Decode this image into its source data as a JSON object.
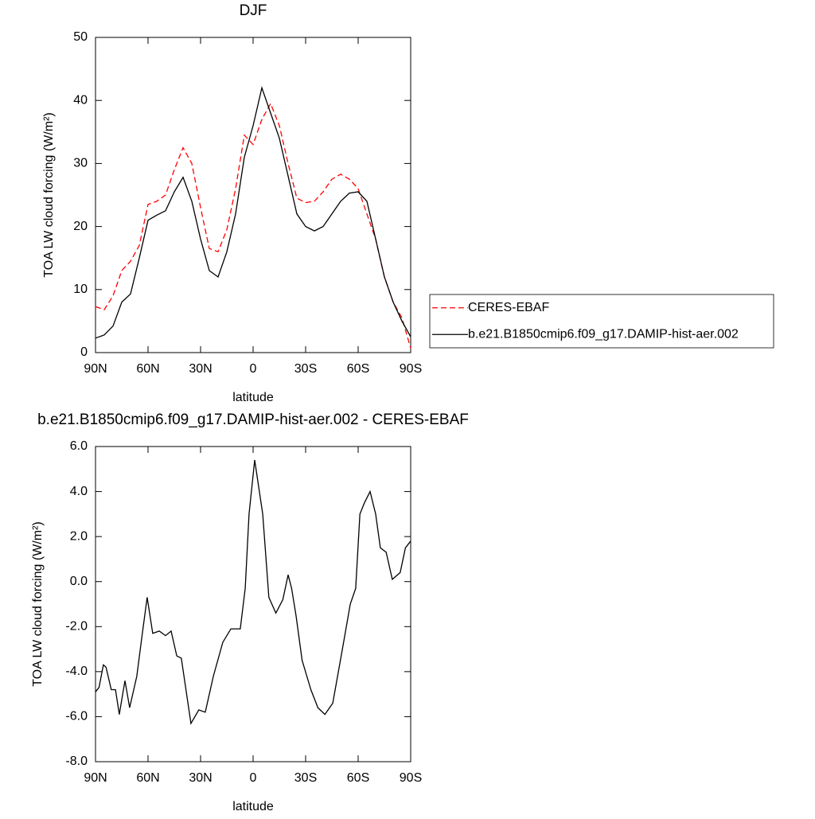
{
  "chart_data": [
    {
      "type": "line",
      "title": "DJF",
      "xlabel": "latitude",
      "ylabel": "TOA LW cloud forcing (W/m²)",
      "x": [
        90,
        85,
        80,
        75,
        70,
        65,
        60,
        55,
        50,
        45,
        40,
        35,
        30,
        25,
        20,
        15,
        10,
        5,
        0,
        -5,
        -10,
        -15,
        -20,
        -25,
        -30,
        -35,
        -40,
        -45,
        -50,
        -55,
        -60,
        -65,
        -70,
        -75,
        -80,
        -85,
        -90
      ],
      "xlim": [
        90,
        -90
      ],
      "xticks": [
        {
          "value": 90,
          "label": "90N"
        },
        {
          "value": 60,
          "label": "60N"
        },
        {
          "value": 30,
          "label": "30N"
        },
        0,
        {
          "value": -30,
          "label": "30S"
        },
        {
          "value": -60,
          "label": "60S"
        },
        {
          "value": -90,
          "label": "90S"
        }
      ],
      "ylim": [
        0,
        50
      ],
      "yticks": [
        0,
        10,
        20,
        30,
        40,
        50
      ],
      "legend": "right",
      "series": [
        {
          "name": "CERES-EBAF",
          "color": "#ff0000",
          "dashed": true,
          "values": [
            7.3,
            6.8,
            9,
            13,
            14.5,
            17,
            23.5,
            24,
            25,
            29,
            32.5,
            30,
            23,
            16.5,
            16,
            19.5,
            26,
            34.5,
            33,
            37,
            39.5,
            36,
            30,
            24.5,
            23.8,
            24,
            25.5,
            27.5,
            28.3,
            27.5,
            26,
            22,
            18,
            12,
            8,
            5.5,
            0.7
          ]
        },
        {
          "name": "b.e21.B1850cmip6.f09_g17.DAMIP-hist-aer.002",
          "color": "#000000",
          "dashed": false,
          "values": [
            2.3,
            2.8,
            4.2,
            8,
            9.3,
            15,
            21,
            21.8,
            22.5,
            25.5,
            27.8,
            24,
            18,
            13,
            12,
            16,
            22,
            31,
            36,
            42,
            38,
            34,
            28,
            22,
            20,
            19.3,
            20,
            22,
            24,
            25.3,
            25.5,
            24,
            18,
            12,
            8,
            5,
            2.5
          ]
        }
      ]
    },
    {
      "type": "line",
      "title": "b.e21.B1850cmip6.f09_g17.DAMIP-hist-aer.002 - CERES-EBAF",
      "xlabel": "latitude",
      "ylabel": "TOA LW cloud forcing (W/m²)",
      "x": [
        90,
        88,
        85.5,
        84,
        81,
        78.6,
        76.4,
        73.2,
        70.5,
        66.4,
        63.6,
        60.5,
        57.3,
        53.6,
        50,
        46.8,
        43.6,
        41,
        35.5,
        31,
        27.3,
        22.7,
        17.3,
        12.7,
        7.3,
        4.5,
        2.3,
        -0.9,
        -5.5,
        -9,
        -13,
        -17,
        -20,
        -22,
        -24.5,
        -28,
        -33,
        -37,
        -41,
        -45.5,
        -51,
        -55.5,
        -58.6,
        -61,
        -63.6,
        -66.8,
        -70,
        -72.7,
        -76,
        -79.5,
        -84,
        -87,
        -90
      ],
      "xlim": [
        90,
        -90
      ],
      "xticks": [
        {
          "value": 90,
          "label": "90N"
        },
        {
          "value": 60,
          "label": "60N"
        },
        {
          "value": 30,
          "label": "30N"
        },
        0,
        {
          "value": -30,
          "label": "30S"
        },
        {
          "value": -60,
          "label": "60S"
        },
        {
          "value": -90,
          "label": "90S"
        }
      ],
      "ylim": [
        -8,
        6
      ],
      "yticks": [
        {
          "value": -8,
          "label": "-8.0"
        },
        {
          "value": -6,
          "label": "-6.0"
        },
        {
          "value": -4,
          "label": "-4.0"
        },
        {
          "value": -2,
          "label": "-2.0"
        },
        {
          "value": 0,
          "label": "0.0"
        },
        {
          "value": 2,
          "label": "2.0"
        },
        {
          "value": 4,
          "label": "4.0"
        },
        {
          "value": 6,
          "label": "6.0"
        }
      ],
      "series": [
        {
          "color": "#000000",
          "dashed": false,
          "values": [
            -4.9,
            -4.7,
            -3.7,
            -3.8,
            -4.8,
            -4.8,
            -5.9,
            -4.4,
            -5.6,
            -4.2,
            -2.5,
            -0.7,
            -2.3,
            -2.2,
            -2.4,
            -2.2,
            -3.3,
            -3.4,
            -6.3,
            -5.7,
            -5.8,
            -4.2,
            -2.7,
            -2.1,
            -2.1,
            -0.3,
            3,
            5.4,
            3,
            -0.7,
            -1.4,
            -0.8,
            0.3,
            -0.3,
            -1.5,
            -3.5,
            -4.8,
            -5.6,
            -5.9,
            -5.4,
            -3,
            -1,
            -0.3,
            3,
            3.5,
            4,
            3,
            1.5,
            1.3,
            0.1,
            0.4,
            1.5,
            1.8
          ]
        }
      ]
    }
  ]
}
